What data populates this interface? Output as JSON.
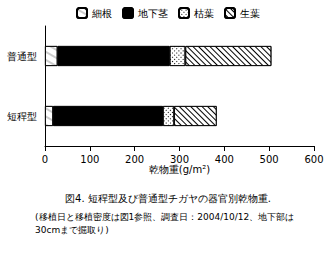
{
  "chart_data": {
    "type": "bar",
    "orientation": "horizontal",
    "stacked": true,
    "title": "図4. 短稈型及び普通型チガヤの器官別乾物重.",
    "subtitle": "(移植日と移植密度は図1参照、調査日：2004/10/12、地下部は\n30cmまで掘取り)",
    "x_label": "乾物重(g/m²)",
    "categories": [
      "普通型",
      "短稈型"
    ],
    "series": [
      {
        "name": "細根",
        "color": "#ffffff",
        "values": [
          28,
          18
        ]
      },
      {
        "name": "地下茎",
        "color": "#000000",
        "values": [
          250,
          245
        ]
      },
      {
        "name": "枯葉",
        "color": "#ffffff",
        "values": [
          35,
          25
        ]
      },
      {
        "name": "生葉",
        "color": "#ffffff",
        "values": [
          192,
          95
        ]
      }
    ],
    "xlim": [
      0,
      600
    ],
    "xticks": [
      0,
      100,
      200,
      300,
      400,
      500,
      600
    ],
    "grid": false,
    "legend": "top"
  }
}
